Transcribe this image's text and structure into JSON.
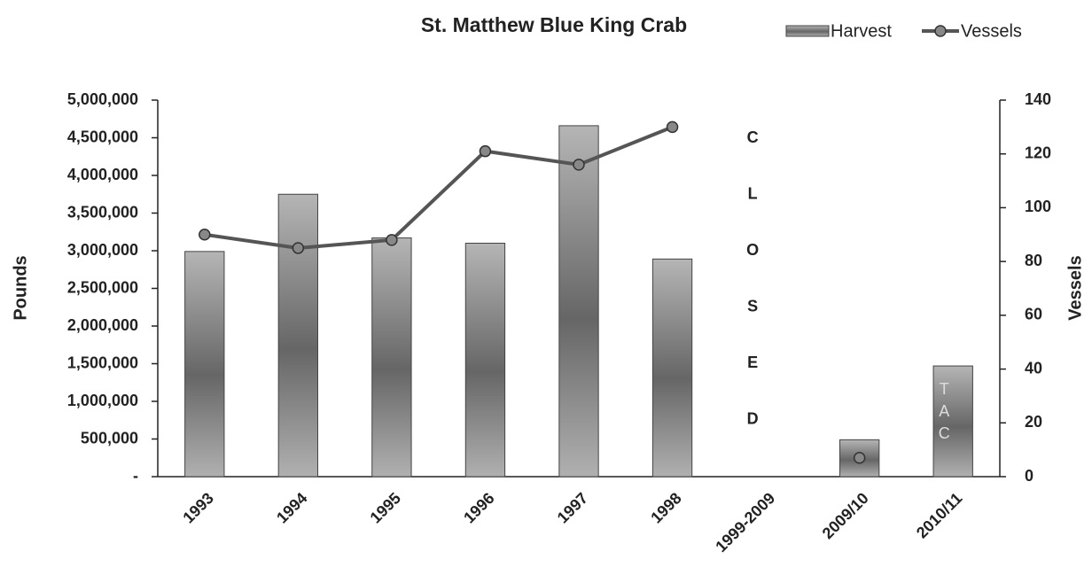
{
  "chart_data": {
    "type": "bar_line",
    "title": "St. Matthew Blue King Crab",
    "y_label": "Pounds",
    "y2_label": "Vessels",
    "categories": [
      "1993",
      "1994",
      "1995",
      "1996",
      "1997",
      "1998",
      "1999-2009",
      "2009/10",
      "2010/11"
    ],
    "series": [
      {
        "name": "Harvest",
        "type": "bar",
        "color": "#8a8a8a",
        "values": [
          2990000,
          3750000,
          3170000,
          3100000,
          4660000,
          2890000,
          null,
          490000,
          1470000
        ]
      },
      {
        "name": "Vessels",
        "type": "line",
        "axis": "y2",
        "color": "#555555",
        "values": [
          90,
          85,
          88,
          121,
          116,
          130,
          null,
          7,
          null
        ]
      }
    ],
    "ylim": [
      0,
      5000000
    ],
    "yticks": [
      {
        "value": 0,
        "label": "-"
      },
      {
        "value": 500000,
        "label": "500,000"
      },
      {
        "value": 1000000,
        "label": "1,000,000"
      },
      {
        "value": 1500000,
        "label": "1,500,000"
      },
      {
        "value": 2000000,
        "label": "2,000,000"
      },
      {
        "value": 2500000,
        "label": "2,500,000"
      },
      {
        "value": 3000000,
        "label": "3,000,000"
      },
      {
        "value": 3500000,
        "label": "3,500,000"
      },
      {
        "value": 4000000,
        "label": "4,000,000"
      },
      {
        "value": 4500000,
        "label": "4,500,000"
      },
      {
        "value": 5000000,
        "label": "5,000,000"
      }
    ],
    "y2lim": [
      0,
      140
    ],
    "y2ticks": [
      0,
      20,
      40,
      60,
      80,
      100,
      120,
      140
    ],
    "annotation_closed": [
      "C",
      "L",
      "O",
      "S",
      "E",
      "D"
    ],
    "annotation_tac": [
      "T",
      "A",
      "C"
    ],
    "legend": "top-right",
    "grid": false
  }
}
